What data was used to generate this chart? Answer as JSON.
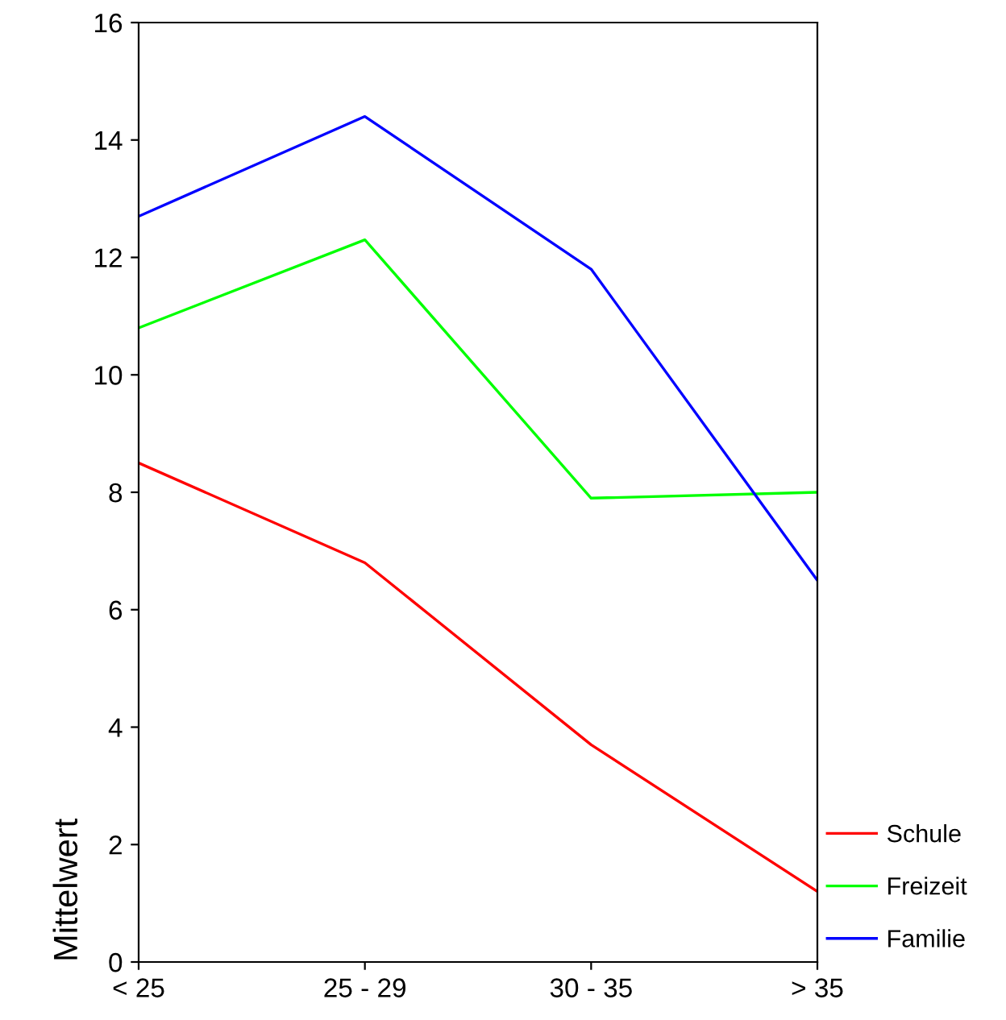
{
  "chart_data": {
    "type": "line",
    "ylabel": "Mittelwert",
    "categories": [
      "< 25",
      "25 - 29",
      "30 - 35",
      "> 35"
    ],
    "series": [
      {
        "name": "Schule",
        "color": "#ff0000",
        "values": [
          8.5,
          6.8,
          3.7,
          1.2
        ]
      },
      {
        "name": "Freizeit",
        "color": "#00ff00",
        "values": [
          10.8,
          12.3,
          7.9,
          8.0
        ]
      },
      {
        "name": "Familie",
        "color": "#0000ff",
        "values": [
          12.7,
          14.4,
          11.8,
          6.5
        ]
      }
    ],
    "ylim": [
      0,
      16
    ],
    "yticks": [
      0,
      2,
      4,
      6,
      8,
      10,
      12,
      14,
      16
    ],
    "grid": false,
    "legend": "bottom right",
    "marker": "none",
    "line_style": "solid"
  }
}
